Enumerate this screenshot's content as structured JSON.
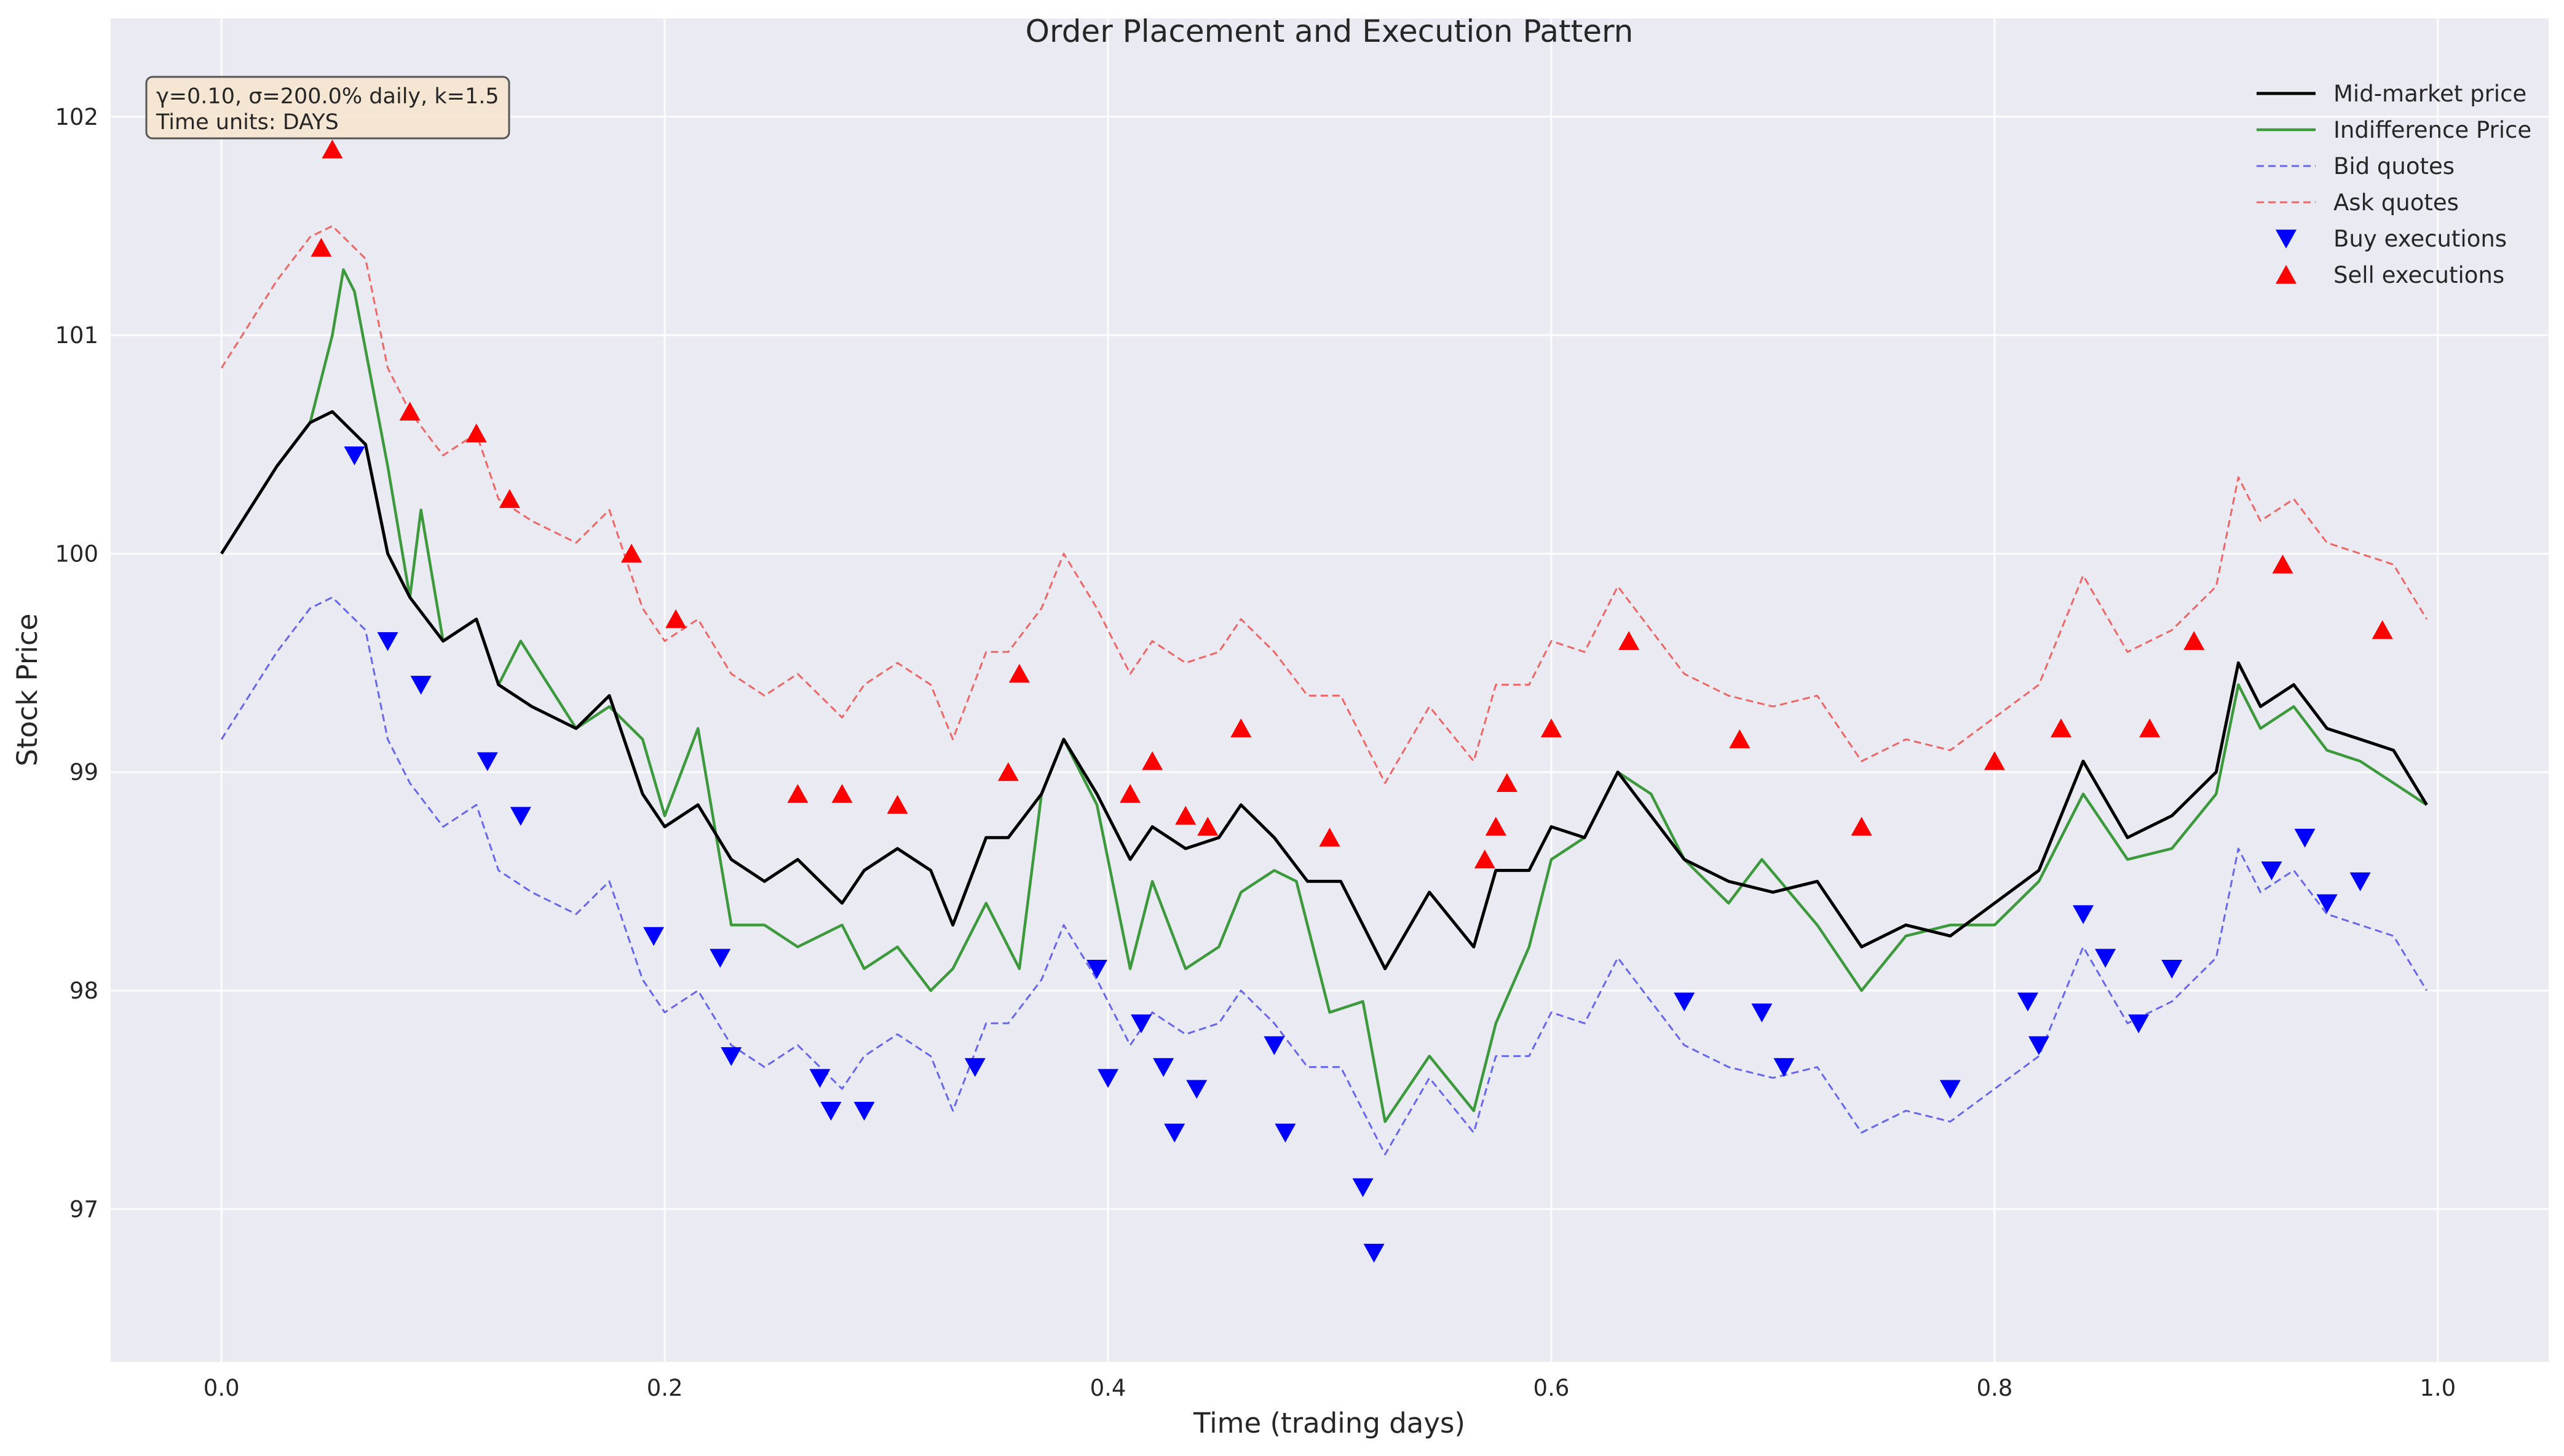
{
  "chart_data": {
    "type": "line",
    "title": "Order Placement and Execution Pattern",
    "xlabel": "Time (trading days)",
    "ylabel": "Stock Price",
    "xlim": [
      -0.05,
      1.05
    ],
    "ylim": [
      96.3,
      102.45
    ],
    "xticks": [
      0.0,
      0.2,
      0.4,
      0.6,
      0.8,
      1.0
    ],
    "xtick_labels": [
      "0.0",
      "0.2",
      "0.4",
      "0.6",
      "0.8",
      "1.0"
    ],
    "yticks": [
      97,
      98,
      99,
      100,
      101,
      102
    ],
    "ytick_labels": [
      "97",
      "98",
      "99",
      "100",
      "101",
      "102"
    ],
    "grid": true,
    "legend_position": "top-right",
    "info_box": [
      "γ=0.10, σ=200.0% daily, k=1.5",
      "Time units: DAYS"
    ],
    "bid_offset": 0.85,
    "ask_offset": 0.85,
    "series": [
      {
        "name": "Mid-market price",
        "color": "#000000",
        "style": "solid",
        "x": [
          0.0,
          0.025,
          0.04,
          0.05,
          0.06,
          0.065,
          0.075,
          0.085,
          0.1,
          0.115,
          0.125,
          0.14,
          0.16,
          0.175,
          0.19,
          0.2,
          0.215,
          0.23,
          0.245,
          0.26,
          0.28,
          0.29,
          0.305,
          0.32,
          0.33,
          0.345,
          0.355,
          0.37,
          0.38,
          0.395,
          0.41,
          0.42,
          0.435,
          0.45,
          0.46,
          0.475,
          0.49,
          0.505,
          0.515,
          0.525,
          0.545,
          0.565,
          0.575,
          0.59,
          0.6,
          0.615,
          0.63,
          0.645,
          0.66,
          0.68,
          0.7,
          0.72,
          0.74,
          0.76,
          0.78,
          0.8,
          0.82,
          0.84,
          0.86,
          0.88,
          0.9,
          0.91,
          0.92,
          0.935,
          0.95,
          0.965,
          0.98,
          0.995
        ],
        "y": [
          100.0,
          100.4,
          100.6,
          100.65,
          100.55,
          100.5,
          100.0,
          99.8,
          99.6,
          99.7,
          99.4,
          99.3,
          99.2,
          99.35,
          98.9,
          98.75,
          98.85,
          98.6,
          98.5,
          98.6,
          98.4,
          98.55,
          98.65,
          98.55,
          98.3,
          98.7,
          98.7,
          98.9,
          99.15,
          98.9,
          98.6,
          98.75,
          98.65,
          98.7,
          98.85,
          98.7,
          98.5,
          98.5,
          98.3,
          98.1,
          98.45,
          98.2,
          98.55,
          98.55,
          98.75,
          98.7,
          99.0,
          98.8,
          98.6,
          98.5,
          98.45,
          98.5,
          98.2,
          98.3,
          98.25,
          98.4,
          98.55,
          99.05,
          98.7,
          98.8,
          99.0,
          99.5,
          99.3,
          99.4,
          99.2,
          99.15,
          99.1,
          98.85
        ]
      },
      {
        "name": "Indifference Price",
        "color": "#3c9a3c",
        "style": "solid",
        "x": [
          0.0,
          0.025,
          0.04,
          0.05,
          0.055,
          0.06,
          0.075,
          0.085,
          0.09,
          0.1,
          0.115,
          0.125,
          0.135,
          0.16,
          0.175,
          0.19,
          0.2,
          0.215,
          0.23,
          0.245,
          0.26,
          0.28,
          0.29,
          0.305,
          0.32,
          0.33,
          0.345,
          0.36,
          0.37,
          0.38,
          0.395,
          0.41,
          0.42,
          0.435,
          0.45,
          0.46,
          0.475,
          0.485,
          0.5,
          0.515,
          0.525,
          0.545,
          0.565,
          0.575,
          0.59,
          0.6,
          0.615,
          0.63,
          0.645,
          0.66,
          0.68,
          0.695,
          0.72,
          0.74,
          0.76,
          0.78,
          0.8,
          0.82,
          0.84,
          0.86,
          0.88,
          0.9,
          0.91,
          0.92,
          0.935,
          0.95,
          0.965,
          0.98,
          0.995
        ],
        "y": [
          100.0,
          100.4,
          100.6,
          101.0,
          101.3,
          101.2,
          100.4,
          99.8,
          100.2,
          99.6,
          99.7,
          99.4,
          99.6,
          99.2,
          99.3,
          99.15,
          98.8,
          99.2,
          98.3,
          98.3,
          98.2,
          98.3,
          98.1,
          98.2,
          98.0,
          98.1,
          98.4,
          98.1,
          98.9,
          99.15,
          98.85,
          98.1,
          98.5,
          98.1,
          98.2,
          98.45,
          98.55,
          98.5,
          97.9,
          97.95,
          97.4,
          97.7,
          97.45,
          97.85,
          98.2,
          98.6,
          98.7,
          99.0,
          98.9,
          98.6,
          98.4,
          98.6,
          98.3,
          98.0,
          98.25,
          98.3,
          98.3,
          98.5,
          98.9,
          98.6,
          98.65,
          98.9,
          99.4,
          99.2,
          99.3,
          99.1,
          99.05,
          98.95,
          98.85
        ]
      },
      {
        "name": "Bid quotes",
        "color": "#6666ee",
        "style": "dashed"
      },
      {
        "name": "Ask quotes",
        "color": "#ee6666",
        "style": "dashed"
      },
      {
        "name": "Buy executions",
        "color": "#0000ff",
        "marker": "triangle-down",
        "x": [
          0.06,
          0.075,
          0.09,
          0.12,
          0.135,
          0.195,
          0.225,
          0.23,
          0.27,
          0.275,
          0.29,
          0.34,
          0.395,
          0.4,
          0.415,
          0.425,
          0.43,
          0.44,
          0.475,
          0.48,
          0.515,
          0.52,
          0.66,
          0.695,
          0.705,
          0.78,
          0.815,
          0.82,
          0.84,
          0.85,
          0.865,
          0.88,
          0.925,
          0.94,
          0.95,
          0.965
        ],
        "y": [
          100.45,
          99.6,
          99.4,
          99.05,
          98.8,
          98.25,
          98.15,
          97.7,
          97.6,
          97.45,
          97.45,
          97.65,
          98.1,
          97.6,
          97.85,
          97.65,
          97.35,
          97.55,
          97.75,
          97.35,
          97.1,
          96.8,
          97.95,
          97.9,
          97.65,
          97.55,
          97.95,
          97.75,
          98.35,
          98.15,
          97.85,
          98.1,
          98.55,
          98.7,
          98.4,
          98.5
        ]
      },
      {
        "name": "Sell executions",
        "color": "#ff0000",
        "marker": "triangle-up",
        "x": [
          0.045,
          0.05,
          0.085,
          0.115,
          0.13,
          0.185,
          0.205,
          0.26,
          0.28,
          0.305,
          0.355,
          0.36,
          0.41,
          0.42,
          0.435,
          0.445,
          0.46,
          0.5,
          0.57,
          0.575,
          0.58,
          0.6,
          0.635,
          0.685,
          0.74,
          0.8,
          0.83,
          0.87,
          0.89,
          0.93,
          0.975
        ],
        "y": [
          101.4,
          101.85,
          100.65,
          100.55,
          100.25,
          100.0,
          99.7,
          98.9,
          98.9,
          98.85,
          99.0,
          99.45,
          98.9,
          99.05,
          98.8,
          98.75,
          99.2,
          98.7,
          98.6,
          98.75,
          98.95,
          99.2,
          99.6,
          99.15,
          98.75,
          99.05,
          99.2,
          99.2,
          99.6,
          99.95,
          99.65
        ]
      }
    ]
  }
}
